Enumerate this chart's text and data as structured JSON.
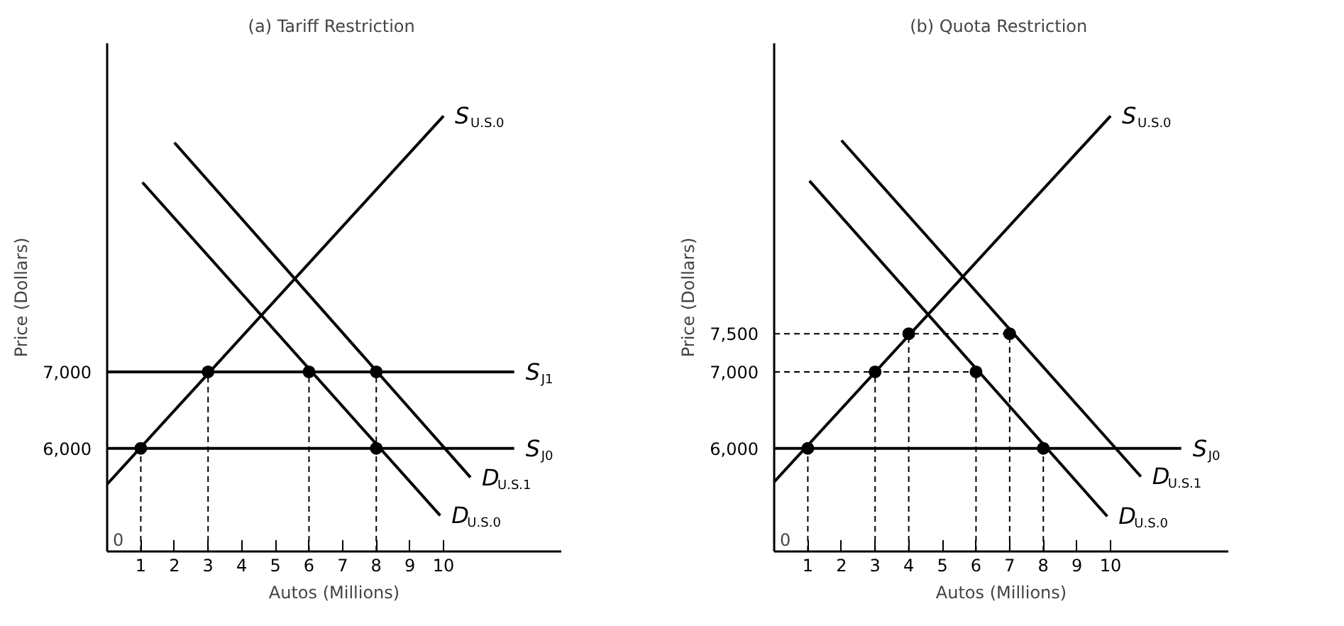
{
  "chart_data": [
    {
      "type": "line",
      "title": "(a)  Tariff Restriction",
      "xlabel": "Autos (Millions)",
      "ylabel": "Price (Dollars)",
      "xlim": [
        0,
        13.5
      ],
      "ylim": [
        4650,
        11300
      ],
      "xticks": [
        1,
        2,
        3,
        4,
        5,
        6,
        7,
        8,
        9,
        10
      ],
      "yticks": [
        {
          "value": 6000,
          "label": "6,000"
        },
        {
          "value": 7000,
          "label": "7,000"
        }
      ],
      "annotations": [
        "0"
      ],
      "grid": false,
      "line_style": "solid",
      "series": [
        {
          "name": "S$_{U.S.0}$",
          "color": "#000000",
          "x": [
            0,
            10
          ],
          "values": [
            5530,
            10350
          ]
        },
        {
          "name": "S$_{J1}$",
          "color": "#000000",
          "x": [
            0,
            12.1
          ],
          "values": [
            7000,
            7000
          ]
        },
        {
          "name": "S$_{J0}$",
          "color": "#000000",
          "x": [
            0,
            12.1
          ],
          "values": [
            6000,
            6000
          ]
        },
        {
          "name": "D$_{U.S.1}$",
          "color": "#000000",
          "x": [
            2,
            10.8
          ],
          "values": [
            10000,
            5620
          ]
        },
        {
          "name": "D$_{U.S.0}$",
          "color": "#000000",
          "x": [
            1.05,
            9.9
          ],
          "values": [
            9480,
            5120
          ]
        },
        {
          "type": "line",
          "line_style": "dashed",
          "color": "#000000",
          "x": [
            1,
            1
          ],
          "values": [
            4650,
            6000
          ]
        },
        {
          "type": "line",
          "line_style": "dashed",
          "color": "#000000",
          "x": [
            3,
            3
          ],
          "values": [
            4650,
            7000
          ]
        },
        {
          "type": "line",
          "line_style": "dashed",
          "color": "#000000",
          "x": [
            6,
            6
          ],
          "values": [
            4650,
            7000
          ]
        },
        {
          "type": "line",
          "line_style": "dashed",
          "color": "#000000",
          "x": [
            8,
            8
          ],
          "values": [
            4650,
            7000
          ]
        },
        {
          "type": "scatter",
          "marker": "circle",
          "color": "#000000",
          "x": [
            1,
            3,
            6,
            8,
            8
          ],
          "values": [
            6000,
            7000,
            7000,
            7000,
            6000
          ]
        }
      ]
    },
    {
      "type": "line",
      "title": "(b)  Quota Restriction",
      "xlabel": "Autos (Millions)",
      "ylabel": "Price (Dollars)",
      "xlim": [
        0,
        13.5
      ],
      "ylim": [
        4650,
        11300
      ],
      "xticks": [
        1,
        2,
        3,
        4,
        5,
        6,
        7,
        8,
        9,
        10
      ],
      "yticks": [
        {
          "value": 6000,
          "label": "6,000"
        },
        {
          "value": 7000,
          "label": "7,000"
        },
        {
          "value": 7500,
          "label": "7,500"
        }
      ],
      "annotations": [
        "0"
      ],
      "grid": false,
      "line_style": "solid",
      "series": [
        {
          "name": "S$_{U.S.0}$",
          "color": "#000000",
          "x": [
            0,
            10
          ],
          "values": [
            5560,
            10350
          ]
        },
        {
          "name": "S$_{J0}$",
          "color": "#000000",
          "x": [
            0,
            12.1
          ],
          "values": [
            6000,
            6000
          ]
        },
        {
          "name": "D$_{U.S.1}$",
          "color": "#000000",
          "x": [
            2,
            10.9
          ],
          "values": [
            10030,
            5630
          ]
        },
        {
          "name": "D$_{U.S.0}$",
          "color": "#000000",
          "x": [
            1.05,
            9.9
          ],
          "values": [
            9500,
            5110
          ]
        },
        {
          "type": "line",
          "line_style": "dashed",
          "color": "#000000",
          "x": [
            0,
            7
          ],
          "values": [
            7500,
            7500
          ]
        },
        {
          "type": "line",
          "line_style": "dashed",
          "color": "#000000",
          "x": [
            0,
            6
          ],
          "values": [
            7000,
            7000
          ]
        },
        {
          "type": "line",
          "line_style": "dashed",
          "color": "#000000",
          "x": [
            1,
            1
          ],
          "values": [
            4650,
            6000
          ]
        },
        {
          "type": "line",
          "line_style": "dashed",
          "color": "#000000",
          "x": [
            3,
            3
          ],
          "values": [
            4650,
            7000
          ]
        },
        {
          "type": "line",
          "line_style": "dashed",
          "color": "#000000",
          "x": [
            4,
            4
          ],
          "values": [
            4650,
            7500
          ]
        },
        {
          "type": "line",
          "line_style": "dashed",
          "color": "#000000",
          "x": [
            6,
            6
          ],
          "values": [
            4650,
            7000
          ]
        },
        {
          "type": "line",
          "line_style": "dashed",
          "color": "#000000",
          "x": [
            7,
            7
          ],
          "values": [
            4650,
            7500
          ]
        },
        {
          "type": "line",
          "line_style": "dashed",
          "color": "#000000",
          "x": [
            8,
            8
          ],
          "values": [
            4650,
            6000
          ]
        },
        {
          "type": "scatter",
          "marker": "circle",
          "color": "#000000",
          "x": [
            1,
            3,
            4,
            6,
            7,
            8
          ],
          "values": [
            6000,
            7000,
            7500,
            7000,
            7500,
            6000
          ]
        }
      ]
    }
  ]
}
